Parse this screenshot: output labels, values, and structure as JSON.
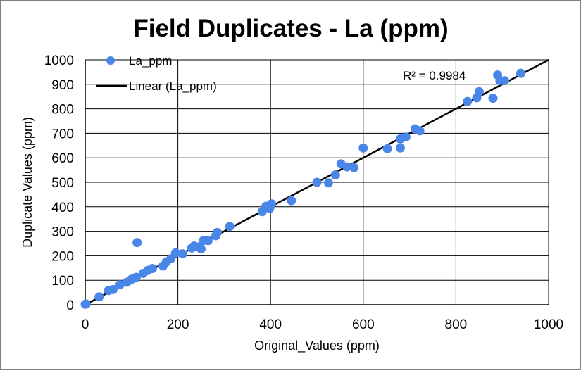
{
  "chart_data": {
    "type": "scatter",
    "title": "Field Duplicates  - La (ppm)",
    "xlabel": "Original_Values (ppm)",
    "ylabel": "Duplicate Values (ppm)",
    "xlim": [
      0,
      1000
    ],
    "ylim": [
      0,
      1000
    ],
    "xticks": [
      "0",
      "200",
      "400",
      "600",
      "800",
      "1000"
    ],
    "yticks": [
      "0",
      "100",
      "200",
      "300",
      "400",
      "500",
      "600",
      "700",
      "800",
      "900",
      "1000"
    ],
    "grid": "major gridlines on both axes",
    "legend_position": "top-left",
    "marker_color": "#4a86e8",
    "trendline_color": "#000000",
    "series": [
      {
        "name": "La_ppm",
        "points": [
          [
            0,
            2
          ],
          [
            2,
            3
          ],
          [
            30,
            32
          ],
          [
            50,
            58
          ],
          [
            60,
            62
          ],
          [
            75,
            82
          ],
          [
            90,
            92
          ],
          [
            100,
            104
          ],
          [
            110,
            112
          ],
          [
            112,
            254
          ],
          [
            125,
            128
          ],
          [
            135,
            140
          ],
          [
            145,
            148
          ],
          [
            168,
            158
          ],
          [
            175,
            175
          ],
          [
            185,
            188
          ],
          [
            195,
            212
          ],
          [
            210,
            208
          ],
          [
            230,
            232
          ],
          [
            235,
            240
          ],
          [
            245,
            236
          ],
          [
            250,
            228
          ],
          [
            255,
            262
          ],
          [
            265,
            262
          ],
          [
            282,
            282
          ],
          [
            285,
            295
          ],
          [
            312,
            320
          ],
          [
            382,
            380
          ],
          [
            390,
            402
          ],
          [
            398,
            393
          ],
          [
            402,
            412
          ],
          [
            445,
            425
          ],
          [
            500,
            500
          ],
          [
            525,
            498
          ],
          [
            540,
            530
          ],
          [
            552,
            575
          ],
          [
            565,
            563
          ],
          [
            580,
            560
          ],
          [
            600,
            640
          ],
          [
            652,
            637
          ],
          [
            680,
            640
          ],
          [
            680,
            677
          ],
          [
            692,
            685
          ],
          [
            712,
            718
          ],
          [
            722,
            710
          ],
          [
            825,
            830
          ],
          [
            845,
            845
          ],
          [
            850,
            870
          ],
          [
            880,
            843
          ],
          [
            890,
            938
          ],
          [
            895,
            915
          ],
          [
            905,
            915
          ],
          [
            940,
            945
          ]
        ]
      }
    ],
    "trendline": {
      "name": "Linear (La_ppm)",
      "r2_label": "R² = 0.9984",
      "x": [
        0,
        1000
      ],
      "y": [
        0,
        1000
      ]
    }
  }
}
